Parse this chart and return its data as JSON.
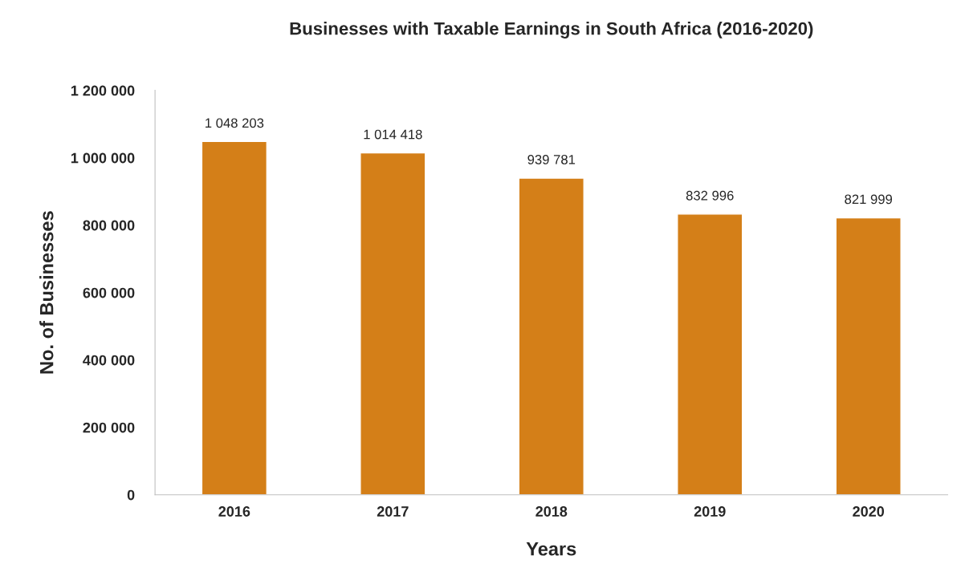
{
  "chart_data": {
    "type": "bar",
    "title": "Businesses with Taxable Earnings in South Africa (2016-2020)",
    "xlabel": "Years",
    "ylabel": "No. of Businesses",
    "categories": [
      "2016",
      "2017",
      "2018",
      "2019",
      "2020"
    ],
    "values": [
      1048203,
      1014418,
      939781,
      832996,
      821999
    ],
    "value_labels": [
      "1 048 203",
      "1 014 418",
      "939 781",
      "832 996",
      "821 999"
    ],
    "color": "#d47f18",
    "ylim": [
      0,
      1200000
    ],
    "yticks": [
      {
        "value": 0,
        "label": "0"
      },
      {
        "value": 200000,
        "label": "200 000"
      },
      {
        "value": 400000,
        "label": "400 000"
      },
      {
        "value": 600000,
        "label": "600 000"
      },
      {
        "value": 800000,
        "label": "800 000"
      },
      {
        "value": 1000000,
        "label": "1 000 000"
      },
      {
        "value": 1200000,
        "label": "1 200 000"
      }
    ],
    "grid": false,
    "legend": false
  }
}
